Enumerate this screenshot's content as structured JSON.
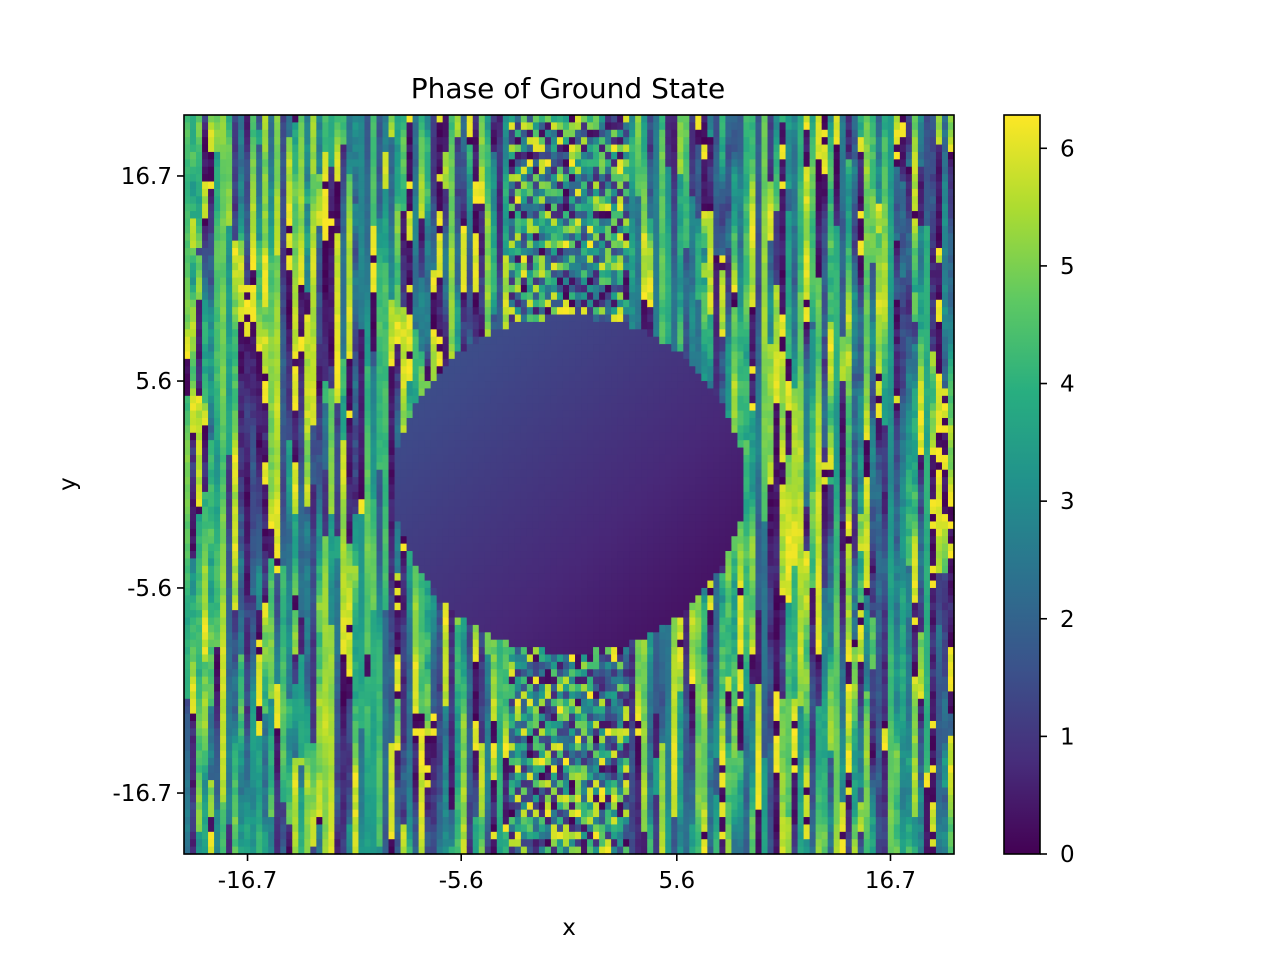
{
  "chart_data": {
    "type": "heatmap",
    "title": "Phase of Ground State",
    "xlabel": "x",
    "ylabel": "y",
    "xlim": [
      -20,
      20
    ],
    "ylim": [
      -20,
      20
    ],
    "x_ticks": [
      -16.7,
      -5.6,
      5.6,
      16.7
    ],
    "y_ticks": [
      -16.7,
      -5.6,
      5.6,
      16.7
    ],
    "x_tick_labels": [
      "-16.7",
      "-5.6",
      "5.6",
      "16.7"
    ],
    "y_tick_labels": [
      "16.7",
      "5.6",
      "-5.6",
      "-16.7"
    ],
    "colormap": "viridis",
    "colorbar": {
      "vmin": 0,
      "vmax": 6.283,
      "ticks": [
        0,
        1,
        2,
        3,
        4,
        5,
        6
      ],
      "tick_labels": [
        "0",
        "1",
        "2",
        "3",
        "4",
        "5",
        "6"
      ]
    },
    "regions": [
      {
        "shape": "disk",
        "center": [
          0,
          0
        ],
        "radius": 9.1,
        "phase_range": [
          0.2,
          1.6
        ],
        "gradient": "decreasing toward lower-right"
      },
      {
        "shape": "vertical-band",
        "x_range": [
          -3,
          3
        ],
        "texture": "random noise",
        "phase_range": [
          0,
          6.283
        ]
      },
      {
        "shape": "background",
        "texture": "vertical streaks",
        "phase_range": [
          0,
          6.283
        ]
      }
    ],
    "grid": false,
    "legend": "none"
  }
}
